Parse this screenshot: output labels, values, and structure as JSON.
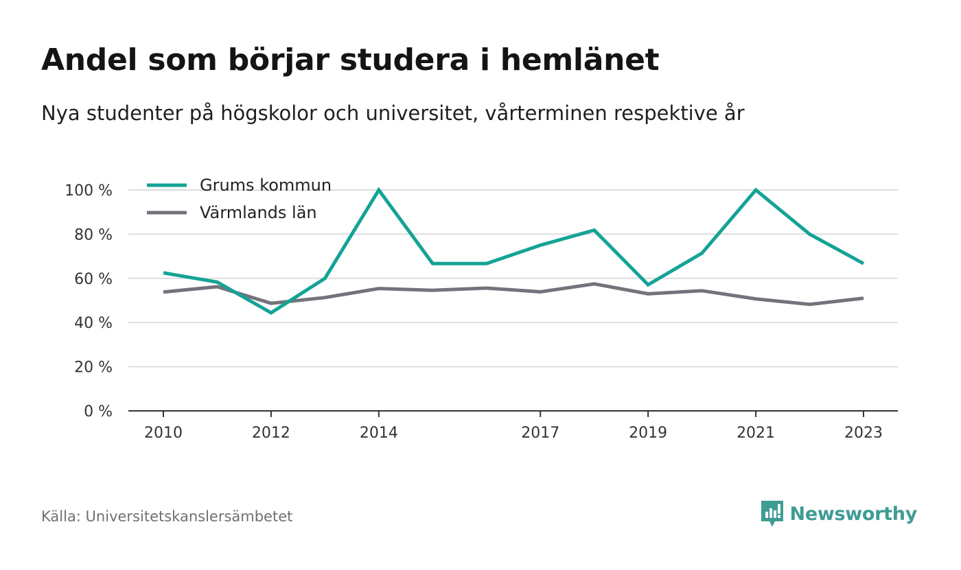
{
  "header": {
    "title": "Andel som börjar studera i hemlänet",
    "subtitle": "Nya studenter på högskolor och universitet, vårterminen respektive år"
  },
  "footer": {
    "source": "Källa: Universitetskanslersämbetet",
    "brand": "Newsworthy"
  },
  "colors": {
    "grums": "#14a396",
    "varmland": "#74727a",
    "grid": "#dddddd",
    "axis": "#333333",
    "brand": "#3f9c94"
  },
  "chart_data": {
    "type": "line",
    "x": [
      2010,
      2011,
      2012,
      2013,
      2014,
      2015,
      2016,
      2017,
      2018,
      2019,
      2020,
      2021,
      2022,
      2023
    ],
    "x_tick_labels": [
      "2010",
      "2012",
      "2014",
      "2017",
      "2019",
      "2021",
      "2023"
    ],
    "y_ticks": [
      0,
      20,
      40,
      60,
      80,
      100
    ],
    "y_tick_labels": [
      "0 %",
      "20 %",
      "40 %",
      "60 %",
      "80 %",
      "100 %"
    ],
    "ylim": [
      0,
      100
    ],
    "grid": true,
    "legend_position": "top-left",
    "series": [
      {
        "name": "Grums kommun",
        "color": "#14a396",
        "values": [
          62.5,
          58.3,
          44.4,
          60.0,
          100.0,
          66.7,
          66.7,
          75.0,
          81.8,
          57.1,
          71.4,
          100.0,
          80.0,
          66.7
        ]
      },
      {
        "name": "Värmlands län",
        "color": "#74727a",
        "values": [
          53.8,
          56.2,
          48.7,
          51.3,
          55.4,
          54.6,
          55.6,
          53.9,
          57.5,
          53.0,
          54.4,
          50.7,
          48.2,
          51.0
        ]
      }
    ]
  }
}
